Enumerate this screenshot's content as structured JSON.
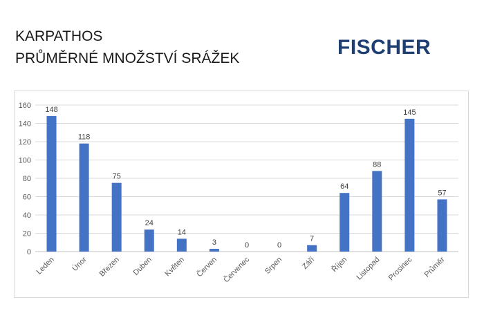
{
  "header": {
    "title_line1": "KARPATHOS",
    "title_line2": "PRŮMĚRNÉ MNOŽSTVÍ SRÁŽEK",
    "logo_text": "FISCHER"
  },
  "colors": {
    "bar": "#4472c4",
    "logo": "#1f3f73"
  },
  "chart_data": {
    "type": "bar",
    "categories": [
      "Leden",
      "Únor",
      "Březen",
      "Duben",
      "Květen",
      "Červen",
      "Červenec",
      "Srpen",
      "Září",
      "Říjen",
      "Listopad",
      "Prosinec",
      "Průměr"
    ],
    "values": [
      148,
      118,
      75,
      24,
      14,
      3,
      0,
      0,
      7,
      64,
      88,
      145,
      57
    ],
    "ylim": [
      0,
      160
    ],
    "yticks": [
      0,
      20,
      40,
      60,
      80,
      100,
      120,
      140,
      160
    ],
    "grid": true,
    "data_labels": true,
    "legend": "none"
  }
}
